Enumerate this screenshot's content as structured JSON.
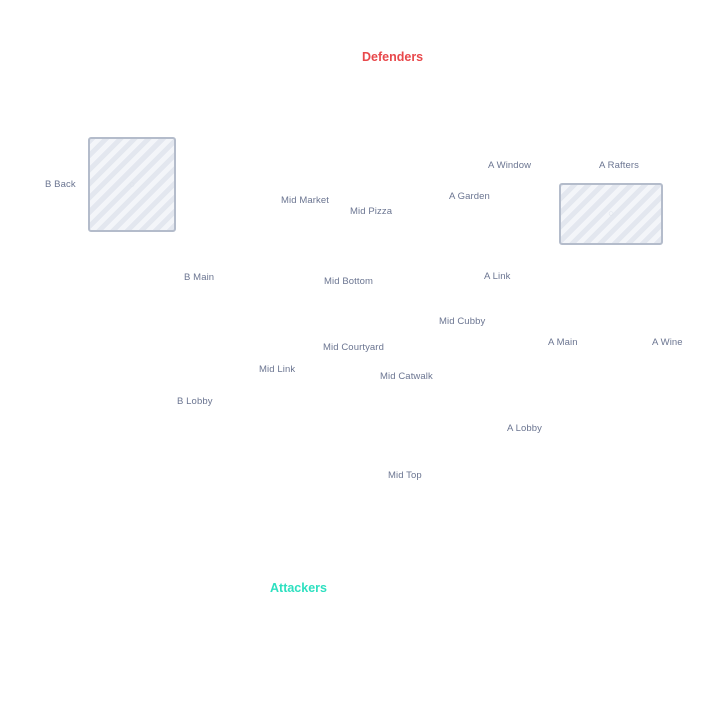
{
  "teams": {
    "defenders": {
      "label": "Defenders",
      "color": "#e8484b"
    },
    "attackers": {
      "label": "Attackers",
      "color": "#2ee0c0"
    }
  },
  "callouts": {
    "b_back": "B Back",
    "mid_market": "Mid Market",
    "mid_pizza": "Mid Pizza",
    "a_window": "A Window",
    "a_rafters": "A Rafters",
    "a_garden": "A Garden",
    "b_main": "B Main",
    "mid_bottom": "Mid Bottom",
    "a_link": "A Link",
    "mid_cubby": "Mid Cubby",
    "mid_courtyard": "Mid Courtyard",
    "a_main": "A Main",
    "a_wine": "A Wine",
    "mid_link": "Mid Link",
    "mid_catwalk": "Mid Catwalk",
    "b_lobby": "B Lobby",
    "a_lobby": "A Lobby",
    "mid_top": "Mid Top"
  },
  "colors": {
    "callout_text": "#6b7591",
    "site_border": "#b4bccb",
    "site_fill": "#f3f5f9",
    "site_stripe": "#e3e7ef"
  }
}
